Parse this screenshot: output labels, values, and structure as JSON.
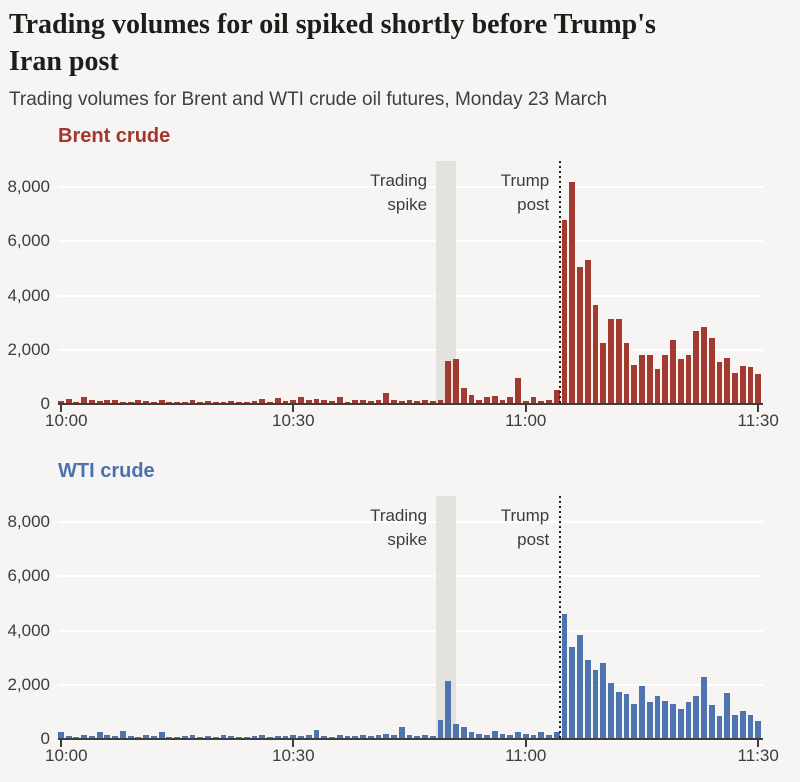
{
  "page": {
    "background": "#f7f5f3"
  },
  "header": {
    "title_lines": [
      "Trading volumes for oil spiked shortly before Trump's",
      "Iran post"
    ],
    "subtitle": "Trading volumes for Brent and WTI crude oil futures, Monday 23 March",
    "title_color": "#1d1d1b",
    "subtitle_color": "#3f3f3f"
  },
  "style": {
    "gridline_color": "#ffffff",
    "axis_text_color": "#3d3d3d",
    "baseline_color": "#3d3d3d",
    "band_fill": "#e4e2df",
    "vline_color": "#1f1f1f",
    "annotation_text_color": "#3d3d3d"
  },
  "chart_data": [
    {
      "type": "bar",
      "title": "Brent crude",
      "title_color": "#a5362c",
      "bar_color": "#a33a30",
      "x_start": "10:00",
      "x_end": "11:30",
      "x_interval_minutes": 1,
      "x_ticks": [
        {
          "label": "10:00",
          "minute": 0
        },
        {
          "label": "10:30",
          "minute": 30
        },
        {
          "label": "11:00",
          "minute": 60
        },
        {
          "label": "11:30",
          "minute": 90
        }
      ],
      "y_ticks": [
        {
          "label": "0",
          "value": 0
        },
        {
          "label": "2,000",
          "value": 2000
        },
        {
          "label": "4,000",
          "value": 4000
        },
        {
          "label": "6,000",
          "value": 6000
        },
        {
          "label": "8,000",
          "value": 8000
        }
      ],
      "ylim": [
        0,
        9000
      ],
      "grid": true,
      "annotations": {
        "band": {
          "label_lines": [
            "Trading",
            "spike"
          ],
          "start_minute": 48.8,
          "end_minute": 51.4
        },
        "vline": {
          "label_lines": [
            "Trump",
            "post"
          ],
          "minute": 64.7
        }
      },
      "values": [
        120,
        180,
        90,
        260,
        140,
        100,
        160,
        130,
        80,
        70,
        160,
        110,
        80,
        130,
        70,
        60,
        90,
        150,
        70,
        100,
        80,
        60,
        120,
        90,
        70,
        110,
        170,
        90,
        210,
        110,
        160,
        260,
        130,
        190,
        150,
        110,
        260,
        90,
        130,
        160,
        110,
        130,
        400,
        150,
        120,
        160,
        100,
        130,
        120,
        150,
        1600,
        1650,
        600,
        330,
        150,
        250,
        280,
        150,
        250,
        950,
        100,
        250,
        120,
        150,
        500,
        6800,
        8200,
        5050,
        5300,
        3650,
        2250,
        3150,
        3150,
        2250,
        1450,
        1800,
        1800,
        1300,
        1800,
        2350,
        1650,
        1800,
        2700,
        2850,
        2450,
        1550,
        1700,
        1150,
        1400,
        1350,
        1100
      ]
    },
    {
      "type": "bar",
      "title": "WTI crude",
      "title_color": "#4c72ae",
      "bar_color": "#4d74ae",
      "x_start": "10:00",
      "x_end": "11:30",
      "x_interval_minutes": 1,
      "x_ticks": [
        {
          "label": "10:00",
          "minute": 0
        },
        {
          "label": "10:30",
          "minute": 30
        },
        {
          "label": "11:00",
          "minute": 60
        },
        {
          "label": "11:30",
          "minute": 90
        }
      ],
      "y_ticks": [
        {
          "label": "0",
          "value": 0
        },
        {
          "label": "2,000",
          "value": 2000
        },
        {
          "label": "4,000",
          "value": 4000
        },
        {
          "label": "6,000",
          "value": 6000
        },
        {
          "label": "8,000",
          "value": 8000
        }
      ],
      "ylim": [
        0,
        9000
      ],
      "grid": true,
      "annotations": {
        "band": {
          "label_lines": [
            "Trading",
            "spike"
          ],
          "start_minute": 48.8,
          "end_minute": 51.4
        },
        "vline": {
          "label_lines": [
            "Trump",
            "post"
          ],
          "minute": 64.7
        }
      },
      "values": [
        250,
        120,
        90,
        150,
        100,
        250,
        130,
        100,
        300,
        120,
        90,
        140,
        110,
        250,
        90,
        70,
        100,
        130,
        80,
        110,
        90,
        150,
        120,
        80,
        70,
        100,
        130,
        90,
        110,
        120,
        150,
        100,
        130,
        350,
        120,
        90,
        140,
        100,
        120,
        150,
        110,
        130,
        200,
        150,
        450,
        130,
        100,
        150,
        120,
        700,
        2150,
        550,
        450,
        250,
        200,
        150,
        300,
        200,
        150,
        250,
        200,
        150,
        250,
        150,
        250,
        4600,
        3400,
        3850,
        2900,
        2550,
        2800,
        2050,
        1750,
        1650,
        1300,
        1950,
        1350,
        1600,
        1400,
        1300,
        1100,
        1350,
        1600,
        2300,
        1250,
        850,
        1700,
        900,
        1050,
        900,
        650
      ]
    }
  ]
}
